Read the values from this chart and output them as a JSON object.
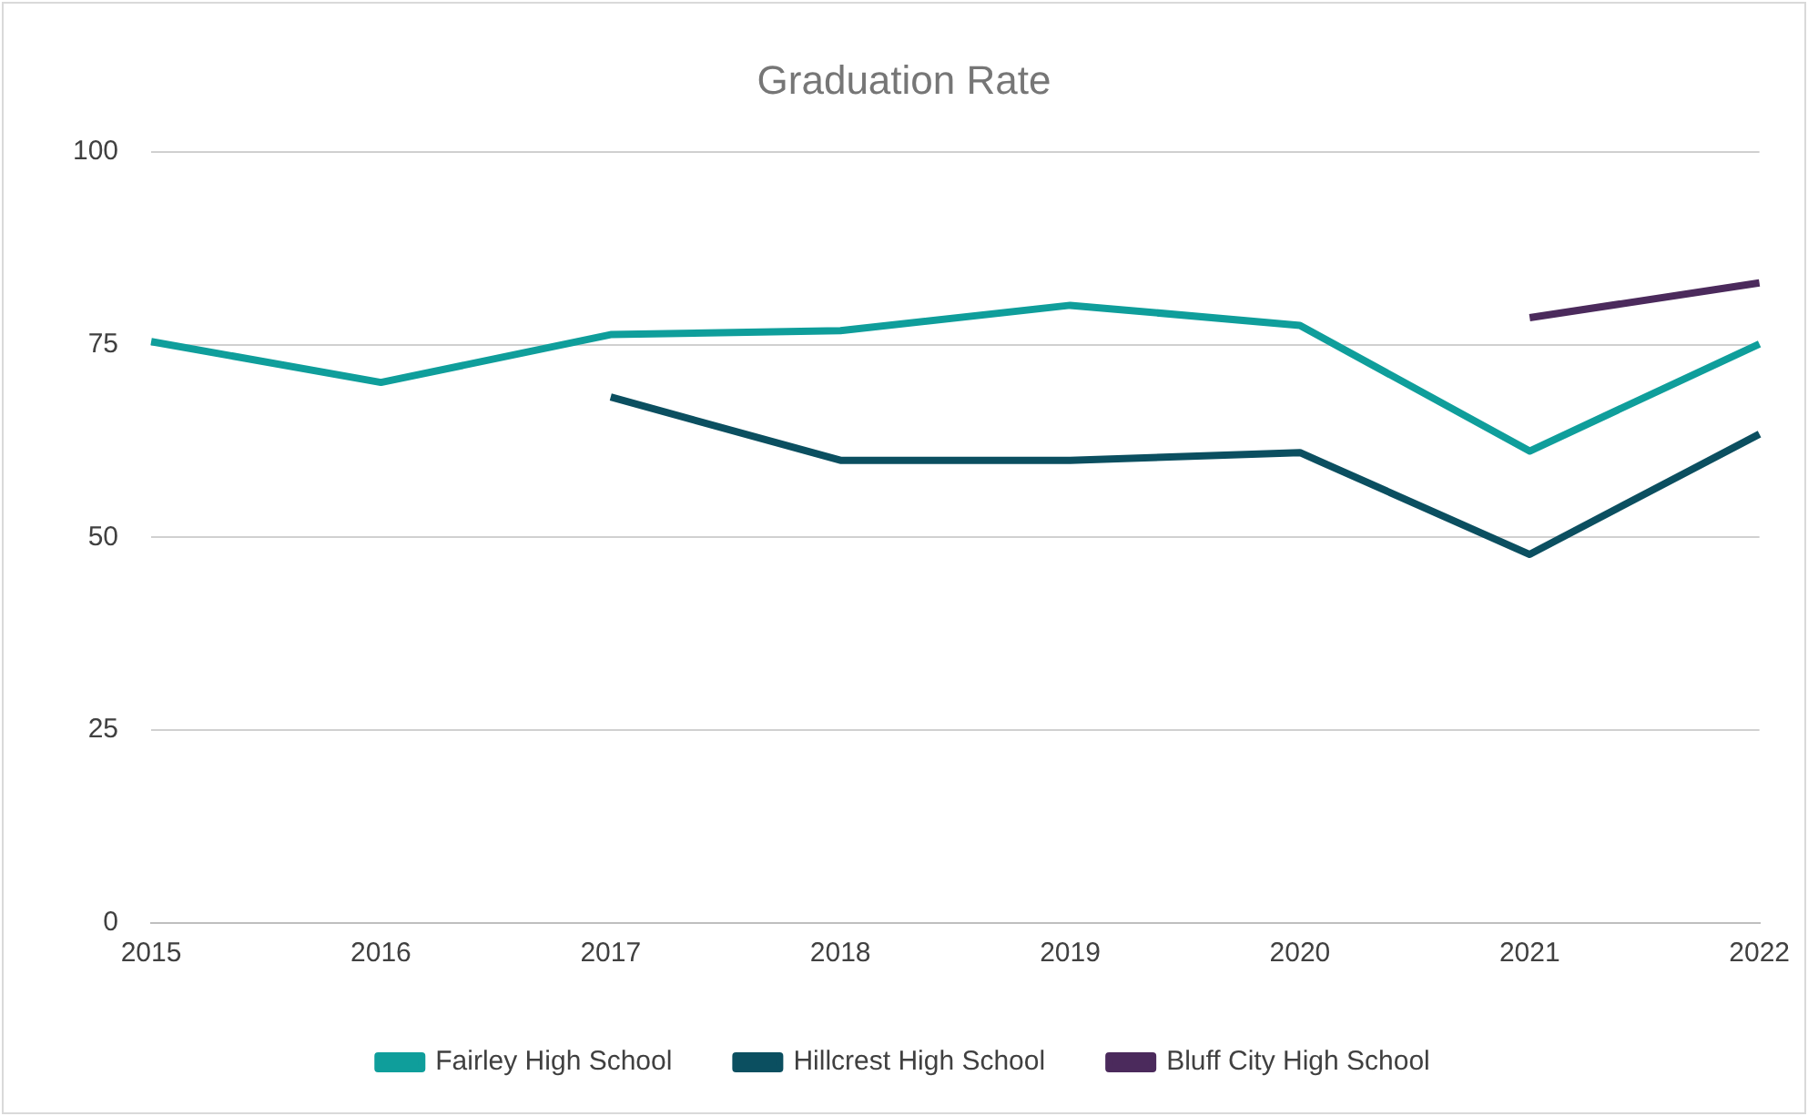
{
  "chart_data": {
    "type": "line",
    "title": "Graduation Rate",
    "categories": [
      "2015",
      "2016",
      "2017",
      "2018",
      "2019",
      "2020",
      "2021",
      "2022"
    ],
    "series": [
      {
        "name": "Fairley High School",
        "color": "#0f9e9b",
        "values": [
          75.4,
          70.1,
          76.3,
          76.8,
          80.1,
          77.5,
          61.2,
          75.1
        ]
      },
      {
        "name": "Hillcrest High School",
        "color": "#0b4f60",
        "values": [
          null,
          null,
          68.2,
          60.0,
          60.0,
          61.0,
          47.8,
          63.4
        ]
      },
      {
        "name": "Bluff City High School",
        "color": "#4b2a5c",
        "values": [
          null,
          null,
          null,
          null,
          null,
          null,
          78.5,
          83.0
        ]
      }
    ],
    "ylim": [
      0,
      100
    ],
    "yticks": [
      0,
      25,
      50,
      75,
      100
    ],
    "grid": "y",
    "legend": "bottom",
    "marker": "none",
    "line_style": "solid"
  }
}
